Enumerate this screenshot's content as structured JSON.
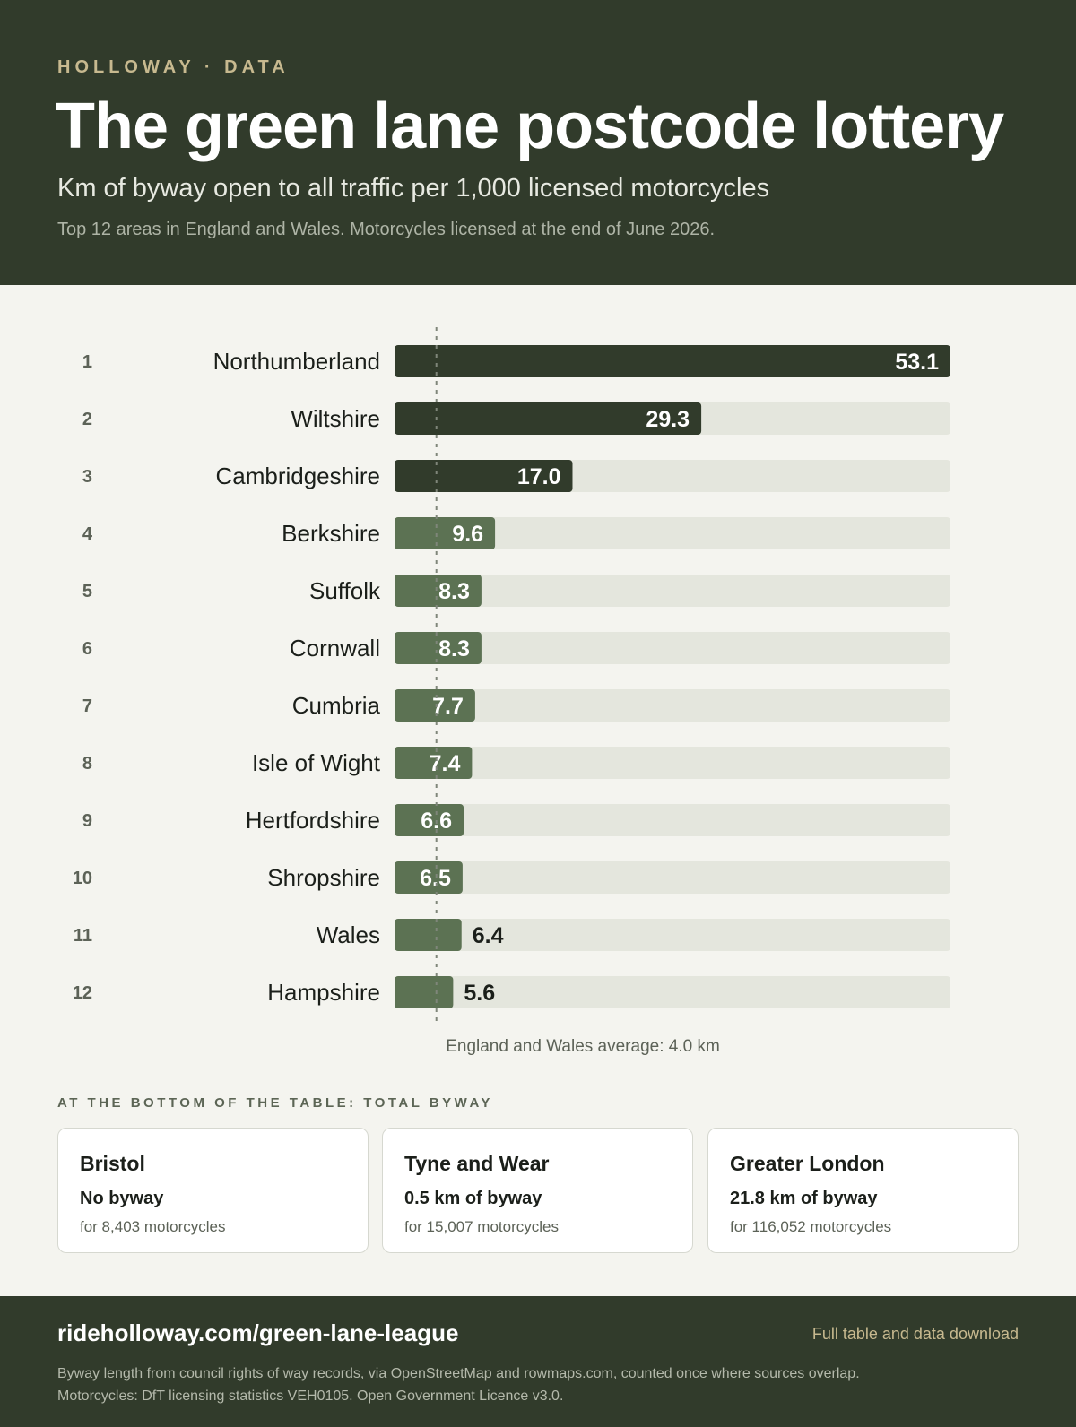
{
  "header": {
    "brand": "HOLLOWAY · DATA",
    "title": "The green lane postcode lottery",
    "subtitle": "Km of byway open to all traffic per 1,000 licensed motorcycles",
    "note": "Top 12 areas in England and Wales. Motorcycles licensed at the end of June 2026."
  },
  "colors": {
    "header_bg": "#313b2b",
    "bar_top": "#313b2b",
    "bar_rest": "#5c7253",
    "track": "#e4e6dd",
    "accent": "#c7b98f",
    "page_bg": "#f4f4ef"
  },
  "chart_data": {
    "type": "bar",
    "orientation": "horizontal",
    "ranks": [
      "1",
      "2",
      "3",
      "4",
      "5",
      "6",
      "7",
      "8",
      "9",
      "10",
      "11",
      "12"
    ],
    "categories": [
      "Northumberland",
      "Wiltshire",
      "Cambridgeshire",
      "Berkshire",
      "Suffolk",
      "Cornwall",
      "Cumbria",
      "Isle of Wight",
      "Hertfordshire",
      "Shropshire",
      "Wales",
      "Hampshire"
    ],
    "values": [
      53.1,
      29.3,
      17.0,
      9.6,
      8.3,
      8.3,
      7.7,
      7.4,
      6.6,
      6.5,
      6.4,
      5.6
    ],
    "value_labels": [
      "53.1",
      "29.3",
      "17.0",
      "9.6",
      "8.3",
      "8.3",
      "7.7",
      "7.4",
      "6.6",
      "6.5",
      "6.4",
      "5.6"
    ],
    "highlight_top_n": 3,
    "xlim": [
      0,
      53.1
    ],
    "reference_line": {
      "value": 4.0,
      "label": "England and Wales average: 4.0 km"
    },
    "grid": false,
    "legend": "none"
  },
  "bottom": {
    "label": "AT THE BOTTOM OF THE TABLE: TOTAL BYWAY",
    "cards": [
      {
        "name": "Bristol",
        "value": "No byway",
        "detail": "for 8,403 motorcycles"
      },
      {
        "name": "Tyne and Wear",
        "value": "0.5 km of byway",
        "detail": "for 15,007 motorcycles"
      },
      {
        "name": "Greater London",
        "value": "21.8 km of byway",
        "detail": "for 116,052 motorcycles"
      }
    ]
  },
  "footer": {
    "url": "rideholloway.com/green-lane-league",
    "link": "Full table and data download",
    "source_line1": "Byway length from council rights of way records, via OpenStreetMap and rowmaps.com, counted once where sources overlap.",
    "source_line2": "Motorcycles: DfT licensing statistics VEH0105. Open Government Licence v3.0."
  }
}
